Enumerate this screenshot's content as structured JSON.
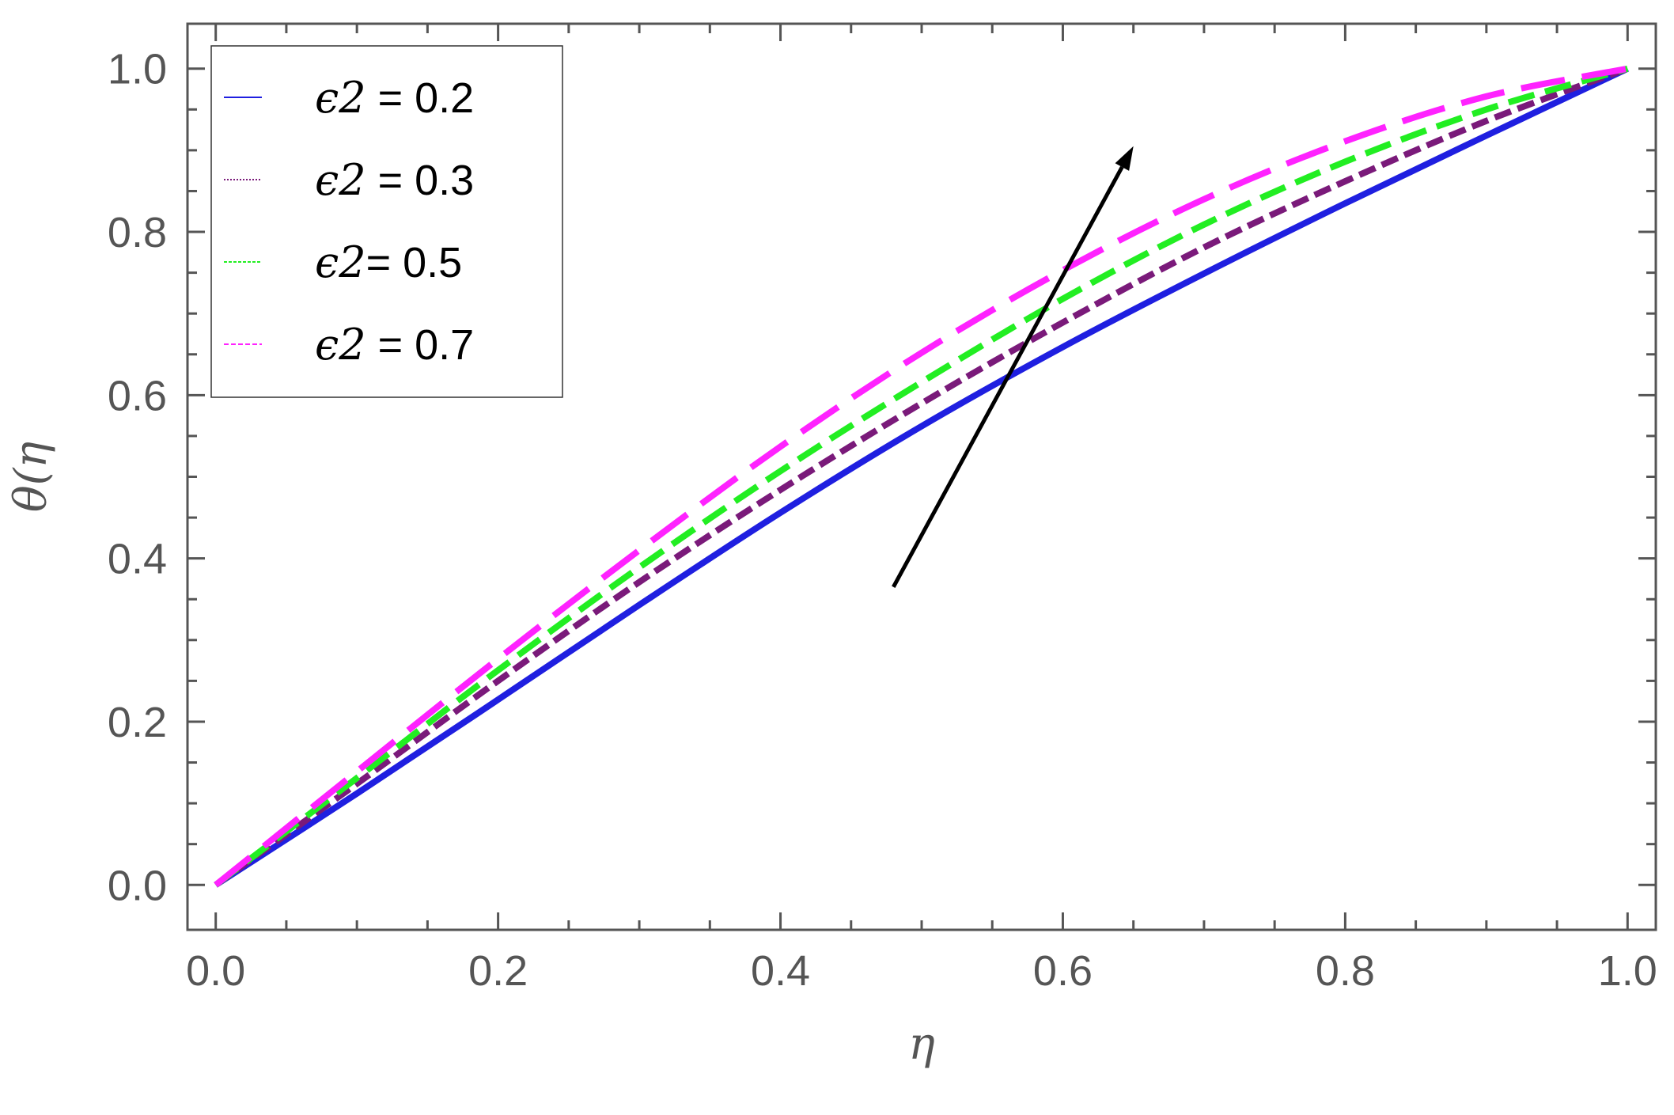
{
  "chart_data": {
    "type": "line",
    "title": "",
    "xlabel": "η",
    "ylabel": "θ(η",
    "xlim": [
      -0.02,
      1.02
    ],
    "ylim": [
      -0.055,
      1.055
    ],
    "x_ticks": [
      0.0,
      0.2,
      0.4,
      0.6,
      0.8,
      1.0
    ],
    "y_ticks": [
      0.0,
      0.2,
      0.4,
      0.6,
      0.8,
      1.0
    ],
    "x_tick_labels": [
      "0.0",
      "0.2",
      "0.4",
      "0.6",
      "0.8",
      "1.0"
    ],
    "y_tick_labels": [
      "0.0",
      "0.2",
      "0.4",
      "0.6",
      "0.8",
      "1.0"
    ],
    "grid": false,
    "legend_position": "top-left",
    "x": [
      0.0,
      0.1,
      0.2,
      0.3,
      0.4,
      0.5,
      0.6,
      0.7,
      0.8,
      0.9,
      1.0
    ],
    "series": [
      {
        "name": "ϵ2 = 0.2",
        "legend_symbol": "ϵ2",
        "legend_value": " = 0.2",
        "color": "#1f1fe0",
        "dash": "solid",
        "values": [
          0.0,
          0.112,
          0.227,
          0.343,
          0.456,
          0.562,
          0.659,
          0.749,
          0.835,
          0.918,
          1.0
        ]
      },
      {
        "name": "ϵ2 = 0.3",
        "legend_symbol": "ϵ2",
        "legend_value": " = 0.3",
        "color": "#7a1a7a",
        "dash": "dotted",
        "values": [
          0.0,
          0.124,
          0.25,
          0.371,
          0.484,
          0.59,
          0.689,
          0.781,
          0.862,
          0.936,
          1.0
        ]
      },
      {
        "name": "ϵ2= 0.5",
        "legend_symbol": "ϵ2",
        "legend_value": "= 0.5",
        "color": "#22ee22",
        "dash": "dashed",
        "values": [
          0.0,
          0.131,
          0.263,
          0.389,
          0.507,
          0.616,
          0.718,
          0.809,
          0.886,
          0.95,
          1.0
        ]
      },
      {
        "name": "ϵ2 = 0.7",
        "legend_symbol": "ϵ2",
        "legend_value": " = 0.7",
        "color": "#ff22ff",
        "dash": "longdash",
        "values": [
          0.0,
          0.139,
          0.277,
          0.41,
          0.537,
          0.652,
          0.753,
          0.84,
          0.911,
          0.966,
          1.0
        ]
      }
    ],
    "annotations": [
      {
        "type": "arrow",
        "from": [
          0.48,
          0.365
        ],
        "to": [
          0.65,
          0.905
        ],
        "color": "#000000"
      }
    ]
  }
}
